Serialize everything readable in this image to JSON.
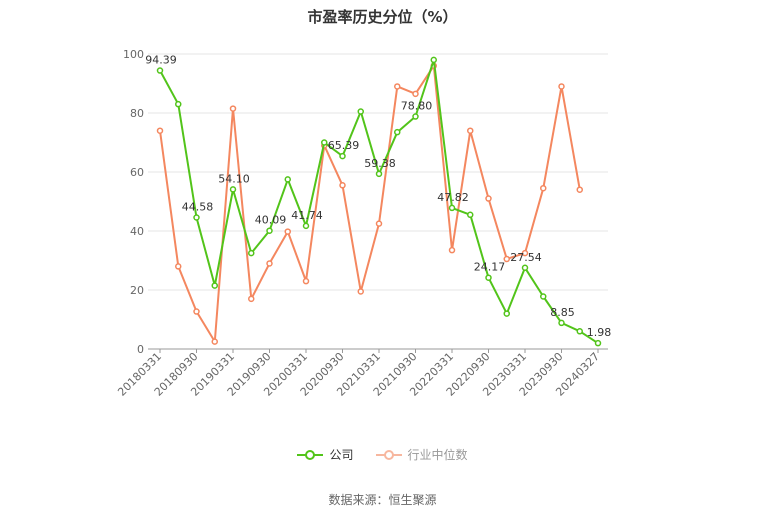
{
  "chart_data": {
    "type": "line",
    "title": "市盈率历史分位（%）",
    "xlabel": "",
    "ylabel": "",
    "ylim": [
      0,
      100
    ],
    "yticks": [
      0,
      20,
      40,
      60,
      80,
      100
    ],
    "grid": true,
    "legend_position": "bottom-center",
    "x": [
      "20180331",
      "20180630",
      "20180930",
      "20181231",
      "20190331",
      "20190630",
      "20190930",
      "20191231",
      "20200331",
      "20200630",
      "20200930",
      "20201231",
      "20210331",
      "20210630",
      "20210930",
      "20211231",
      "20220331",
      "20220630",
      "20220930",
      "20221231",
      "20230331",
      "20230630",
      "20230930",
      "20231231",
      "20240327"
    ],
    "xtick_labels": [
      "20180331",
      "20180930",
      "20190331",
      "20190930",
      "20200331",
      "20200930",
      "20210331",
      "20210930",
      "20220331",
      "20220930",
      "20230331",
      "20230930",
      "20240327"
    ],
    "xtick_indices": [
      0,
      2,
      4,
      6,
      8,
      10,
      12,
      14,
      16,
      18,
      20,
      22,
      24
    ],
    "series": [
      {
        "name": "公司",
        "color": "#52c41a",
        "values": [
          94.39,
          83.0,
          44.58,
          21.5,
          54.1,
          32.5,
          40.09,
          57.5,
          41.74,
          70.0,
          65.39,
          80.5,
          59.38,
          73.5,
          78.8,
          98.0,
          47.82,
          45.5,
          24.17,
          12.0,
          27.54,
          17.8,
          8.85,
          6.0,
          1.98
        ],
        "labels": {
          "0": "94.39",
          "2": "44.58",
          "4": "54.10",
          "6": "40.09",
          "8": "41.74",
          "10": "65.39",
          "12": "59.38",
          "14": "78.80",
          "16": "47.82",
          "18": "24.17",
          "20": "27.54",
          "22": "8.85",
          "24": "1.98"
        }
      },
      {
        "name": "行业中位数",
        "color": "#f4875f",
        "values": [
          74.0,
          28.0,
          12.7,
          2.5,
          81.5,
          17.0,
          29.0,
          39.8,
          23.0,
          69.0,
          55.5,
          19.5,
          42.5,
          89.0,
          86.5,
          96.0,
          33.5,
          74.0,
          51.0,
          30.5,
          32.5,
          54.5,
          89.0,
          54.0,
          null
        ],
        "labels": {}
      }
    ]
  },
  "source": "数据来源：恒生聚源"
}
